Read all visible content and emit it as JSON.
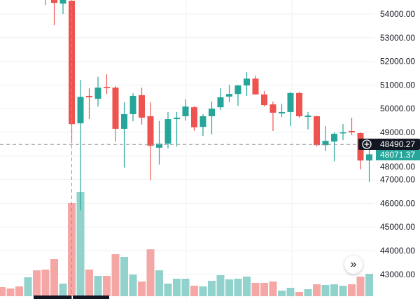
{
  "chart_data": {
    "type": "candlestick",
    "title": "",
    "xlabel": "",
    "ylabel": "",
    "ylim": [
      42500,
      54600
    ],
    "price_ticks": [
      "54000.00",
      "53000.00",
      "52000.00",
      "51000.00",
      "50000.00",
      "49000.00",
      "48000.00",
      "47000.00",
      "46000.00",
      "45000.00",
      "44000.00",
      "43000.00"
    ],
    "grid": true,
    "colors": {
      "up": "#26a69a",
      "down": "#ef5350",
      "up_volume": "#92d2cc",
      "down_volume": "#f4a7a5",
      "crosshair_label_bg": "#131722"
    },
    "crosshair": {
      "price_label": "48490.27",
      "price": 48490.27,
      "candle_index": 8
    },
    "last_price": {
      "label": "48071.37",
      "price": 48071.37
    },
    "volume_unit": "relative",
    "candles": [
      {
        "dir": "down",
        "o": null,
        "h": null,
        "l": null,
        "c": null,
        "v": 13
      },
      {
        "dir": "down",
        "o": null,
        "h": null,
        "l": null,
        "c": null,
        "v": 11
      },
      {
        "dir": "down",
        "o": null,
        "h": null,
        "l": null,
        "c": null,
        "v": 14
      },
      {
        "dir": "up",
        "o": null,
        "h": null,
        "l": null,
        "c": null,
        "v": 27
      },
      {
        "dir": "down",
        "o": null,
        "h": null,
        "l": null,
        "c": null,
        "v": 37
      },
      {
        "dir": "down",
        "o": 54700,
        "h": 55000,
        "l": 54385,
        "c": 54620,
        "v": 38
      },
      {
        "dir": "down",
        "o": 54800,
        "h": 55000,
        "l": 53530,
        "c": 54470,
        "v": 53
      },
      {
        "dir": "up",
        "o": 54440,
        "h": 54900,
        "l": 54000,
        "c": 54700,
        "v": 18
      },
      {
        "dir": "down",
        "o": 54560,
        "h": 54700,
        "l": 48550,
        "c": 49350,
        "v": 133
      },
      {
        "dir": "up",
        "o": 49380,
        "h": 51220,
        "l": 45710,
        "c": 50500,
        "v": 149
      },
      {
        "dir": "down",
        "o": 50540,
        "h": 50860,
        "l": 49560,
        "c": 50480,
        "v": 38
      },
      {
        "dir": "up",
        "o": 50420,
        "h": 51350,
        "l": 50090,
        "c": 50890,
        "v": 29
      },
      {
        "dir": "down",
        "o": 50920,
        "h": 51450,
        "l": 50620,
        "c": 50870,
        "v": 29
      },
      {
        "dir": "down",
        "o": 50890,
        "h": 50950,
        "l": 48600,
        "c": 49150,
        "v": 60
      },
      {
        "dir": "up",
        "o": 49150,
        "h": 50270,
        "l": 47510,
        "c": 49770,
        "v": 56
      },
      {
        "dir": "up",
        "o": 49770,
        "h": 50650,
        "l": 49470,
        "c": 50540,
        "v": 31
      },
      {
        "dir": "down",
        "o": 50570,
        "h": 50890,
        "l": 49330,
        "c": 49620,
        "v": 21
      },
      {
        "dir": "down",
        "o": 49680,
        "h": 50270,
        "l": 46985,
        "c": 48430,
        "v": 67
      },
      {
        "dir": "up",
        "o": 48350,
        "h": 49480,
        "l": 47640,
        "c": 48520,
        "v": 37
      },
      {
        "dir": "up",
        "o": 48520,
        "h": 49860,
        "l": 48320,
        "c": 49560,
        "v": 18
      },
      {
        "dir": "up",
        "o": 49560,
        "h": 49860,
        "l": 48400,
        "c": 49620,
        "v": 25
      },
      {
        "dir": "up",
        "o": 49680,
        "h": 50390,
        "l": 49500,
        "c": 50090,
        "v": 25
      },
      {
        "dir": "down",
        "o": 50060,
        "h": 50120,
        "l": 49060,
        "c": 49210,
        "v": 15
      },
      {
        "dir": "up",
        "o": 49230,
        "h": 49770,
        "l": 48850,
        "c": 49680,
        "v": 14
      },
      {
        "dir": "up",
        "o": 49680,
        "h": 50300,
        "l": 48910,
        "c": 50000,
        "v": 22
      },
      {
        "dir": "up",
        "o": 50060,
        "h": 50860,
        "l": 49940,
        "c": 50480,
        "v": 30
      },
      {
        "dir": "up",
        "o": 50510,
        "h": 51010,
        "l": 50270,
        "c": 50620,
        "v": 24
      },
      {
        "dir": "up",
        "o": 50620,
        "h": 51010,
        "l": 50120,
        "c": 50980,
        "v": 25
      },
      {
        "dir": "up",
        "o": 50980,
        "h": 51540,
        "l": 50540,
        "c": 51270,
        "v": 28
      },
      {
        "dir": "down",
        "o": 51270,
        "h": 51400,
        "l": 50600,
        "c": 50600,
        "v": 19
      },
      {
        "dir": "down",
        "o": 50600,
        "h": 50740,
        "l": 50090,
        "c": 50150,
        "v": 19
      },
      {
        "dir": "down",
        "o": 50180,
        "h": 50300,
        "l": 49060,
        "c": 49830,
        "v": 21
      },
      {
        "dir": "up",
        "o": 49800,
        "h": 50210,
        "l": 49650,
        "c": 49860,
        "v": 8
      },
      {
        "dir": "up",
        "o": 49860,
        "h": 50710,
        "l": 49260,
        "c": 50660,
        "v": 12
      },
      {
        "dir": "down",
        "o": 50660,
        "h": 50710,
        "l": 49620,
        "c": 49680,
        "v": 6
      },
      {
        "dir": "up",
        "o": 49650,
        "h": 49860,
        "l": 49120,
        "c": 49710,
        "v": 10
      },
      {
        "dir": "down",
        "o": 49680,
        "h": 49710,
        "l": 48400,
        "c": 48460,
        "v": 17
      },
      {
        "dir": "up",
        "o": 48460,
        "h": 49260,
        "l": 48200,
        "c": 48640,
        "v": 16
      },
      {
        "dir": "up",
        "o": 48610,
        "h": 49000,
        "l": 47780,
        "c": 48940,
        "v": 17
      },
      {
        "dir": "up",
        "o": 48970,
        "h": 49350,
        "l": 48670,
        "c": 49000,
        "v": 15
      },
      {
        "dir": "down",
        "o": 49060,
        "h": 49620,
        "l": 48880,
        "c": 49000,
        "v": 17
      },
      {
        "dir": "down",
        "o": 48970,
        "h": 49000,
        "l": 47430,
        "c": 47810,
        "v": 28
      },
      {
        "dir": "up",
        "o": 47810,
        "h": 48520,
        "l": 46900,
        "c": 48071.37,
        "v": 32
      }
    ]
  },
  "controls": {
    "scroll_to_realtime_label": "»"
  }
}
